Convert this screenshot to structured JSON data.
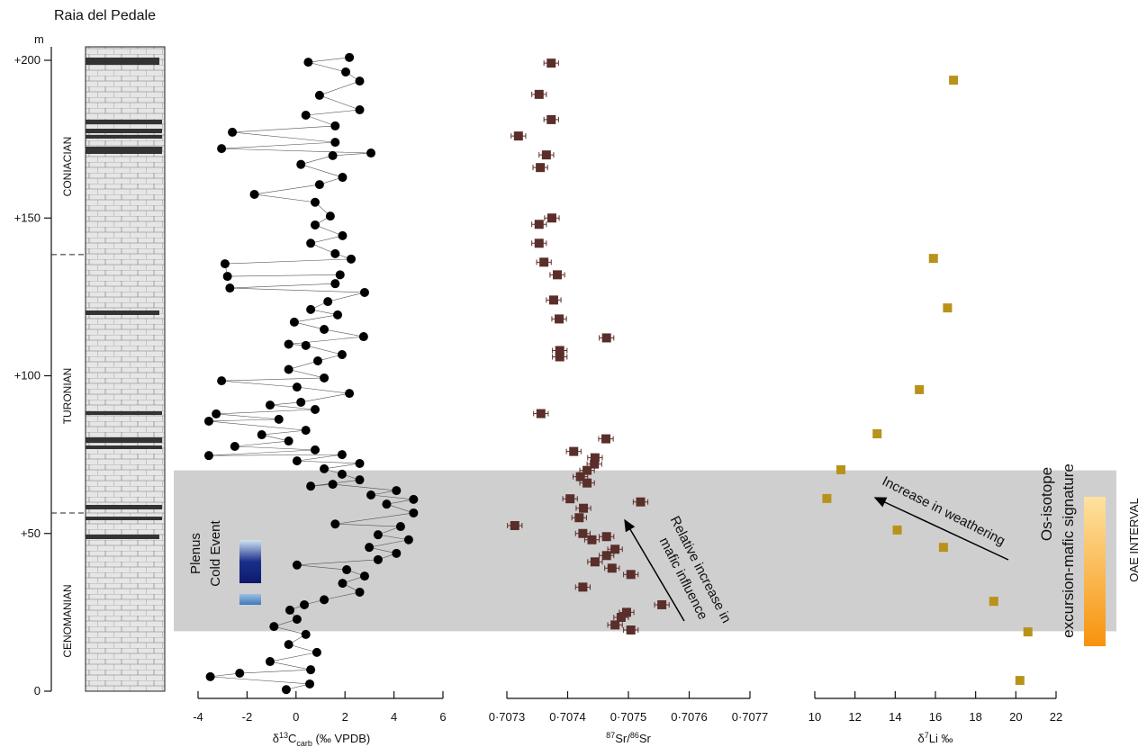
{
  "figure": {
    "title": "Raia del Pedale",
    "ylabel": "m",
    "ylim": [
      0,
      200
    ],
    "yticks": [
      0,
      {
        "value": 50,
        "label": "+50"
      },
      {
        "value": 100,
        "label": "+100"
      },
      {
        "value": 150,
        "label": "+150"
      },
      {
        "value": 200,
        "label": "+200"
      }
    ],
    "stages": [
      "CONIACIAN",
      "TURONIAN",
      "CENOMANIAN"
    ],
    "stage_boundaries": [
      138.4,
      56.5
    ],
    "oae_interval": [
      19,
      70
    ],
    "oae_label": "OAE INTERVAL",
    "band_color": "#cfcfcf"
  },
  "chart_data": [
    {
      "type": "scatter",
      "xlabel": [
        "δ",
        "13",
        "C",
        "carb",
        " (‰ VPDB)"
      ],
      "xlim": [
        -4,
        6
      ],
      "xticks": [
        -4,
        -2,
        0,
        2,
        4,
        6
      ],
      "connect": true,
      "annotation": [
        "Plenus",
        "Cold Event"
      ],
      "series": [
        {
          "color": "#000000",
          "x": [
            -0.4,
            0.56,
            -3.5,
            -2.3,
            0.6,
            -1.06,
            0.85,
            -0.3,
            0.4,
            -0.9,
            0.04,
            -0.25,
            0.34,
            1.15,
            2.6,
            1.9,
            2.8,
            2.07,
            0.04,
            3.35,
            4.1,
            2.99,
            4.6,
            3.35,
            4.27,
            1.6,
            4.8,
            3.7,
            4.8,
            3.06,
            4.1,
            1.5,
            0.6,
            2.6,
            1.88,
            1.15,
            2.6,
            0.04,
            1.88,
            -3.56,
            0.78,
            -2.5,
            -0.3,
            -1.4,
            0.4,
            -3.56,
            -0.7,
            -3.26,
            0.78,
            -1.06,
            0.2,
            2.18,
            0.04,
            -3.04,
            1.15,
            -0.3,
            0.89,
            1.88,
            0.4,
            -0.3,
            2.76,
            1.15,
            -0.07,
            1.7,
            0.6,
            1.3,
            2.8,
            -2.7,
            1.6,
            1.8,
            -2.8,
            -2.9,
            2.25,
            1.6,
            0.6,
            1.9,
            0.78,
            1.4,
            0.78,
            -1.7,
            0.96,
            1.9,
            0.2,
            1.5,
            3.06,
            -3.04,
            1.6,
            -2.6,
            1.6,
            0.4,
            2.6,
            0.96,
            2.6,
            2.03,
            0.5,
            2.18
          ],
          "y": [
            0.5,
            2.3,
            4.6,
            5.7,
            6.8,
            9.4,
            12.3,
            14.8,
            18,
            20.5,
            22.8,
            25.7,
            27.4,
            29,
            31.4,
            34.2,
            36.5,
            38.5,
            40,
            41.7,
            43.7,
            45.6,
            48,
            49.6,
            52.2,
            53,
            56.5,
            59.3,
            60.8,
            62.2,
            63.6,
            65.6,
            65,
            67,
            68.8,
            70.5,
            72.2,
            73,
            75,
            74.7,
            76.5,
            77.6,
            79.3,
            81.3,
            82.7,
            85.6,
            86.2,
            87.9,
            89.3,
            90.7,
            91.6,
            94.4,
            96.4,
            98.4,
            99.3,
            102,
            104.7,
            106.7,
            109.6,
            110,
            112.4,
            114.7,
            117,
            119.3,
            121,
            123.5,
            126.4,
            127.8,
            129.2,
            132,
            131.5,
            135.5,
            137,
            138.7,
            142,
            144.4,
            147.8,
            150.6,
            155,
            157.5,
            160.6,
            162.9,
            167,
            169.8,
            170.6,
            172,
            174,
            177.2,
            179.2,
            182.6,
            184.3,
            188.9,
            193.4,
            196.3,
            199.4,
            200.9
          ]
        }
      ]
    },
    {
      "type": "scatter",
      "xlabel": [
        "87",
        "Sr/",
        "86",
        "Sr"
      ],
      "xlim": [
        0.7073,
        0.7077
      ],
      "xticks": [
        {
          "value": 0.7073,
          "label": "0·7073"
        },
        {
          "value": 0.7074,
          "label": "0·7074"
        },
        {
          "value": 0.7075,
          "label": "0·7075"
        },
        {
          "value": 0.7076,
          "label": "0·7076"
        },
        {
          "value": 0.7077,
          "label": "0·7077"
        }
      ],
      "annotation": [
        "Relative increase in",
        "mafic influence"
      ],
      "series": [
        {
          "color": "#5a2e2a",
          "xerr": 1.2e-05,
          "x": [
            0.707373,
            0.707353,
            0.707373,
            0.707319,
            0.707365,
            0.707355,
            0.707374,
            0.707353,
            0.707353,
            0.707361,
            0.707383,
            0.707377,
            0.707386,
            0.707464,
            0.707387,
            0.707387,
            0.707356,
            0.707463,
            0.70741,
            0.707445,
            0.707444,
            0.707432,
            0.707421,
            0.707432,
            0.707404,
            0.70752,
            0.707426,
            0.707419,
            0.707313,
            0.707425,
            0.707464,
            0.70744,
            0.707478,
            0.707464,
            0.707445,
            0.707473,
            0.707504,
            0.707425,
            0.707555,
            0.707497,
            0.707488,
            0.707478,
            0.707504
          ],
          "y": [
            199.1,
            189.2,
            181.2,
            176,
            170,
            166,
            150,
            148,
            142,
            136,
            132,
            124,
            118,
            112,
            108,
            106,
            88,
            80,
            76,
            74,
            72,
            70,
            68,
            66,
            61,
            60,
            58,
            55,
            52.5,
            50,
            49,
            48,
            45,
            43,
            41,
            39,
            37,
            33,
            27.4,
            25,
            23.4,
            21,
            19.4
          ]
        }
      ]
    },
    {
      "type": "scatter",
      "xlabel": [
        "δ",
        "7",
        "Li ‰"
      ],
      "xlim": [
        10,
        22
      ],
      "xticks": [
        10,
        12,
        14,
        16,
        18,
        20,
        22
      ],
      "annotation": [
        "Increase in weathering"
      ],
      "side_label": [
        "Os-isotope",
        "excursion-mafic signature"
      ],
      "series": [
        {
          "color": "#b8921a",
          "x": [
            16.9,
            15.9,
            16.6,
            15.2,
            13.1,
            11.3,
            10.6,
            14.1,
            16.4,
            18.9,
            20.6,
            20.2
          ],
          "y": [
            193.7,
            137.2,
            121.5,
            95.6,
            81.6,
            70.2,
            61.1,
            51.1,
            45.6,
            28.5,
            18.8,
            3.4
          ]
        }
      ]
    }
  ]
}
